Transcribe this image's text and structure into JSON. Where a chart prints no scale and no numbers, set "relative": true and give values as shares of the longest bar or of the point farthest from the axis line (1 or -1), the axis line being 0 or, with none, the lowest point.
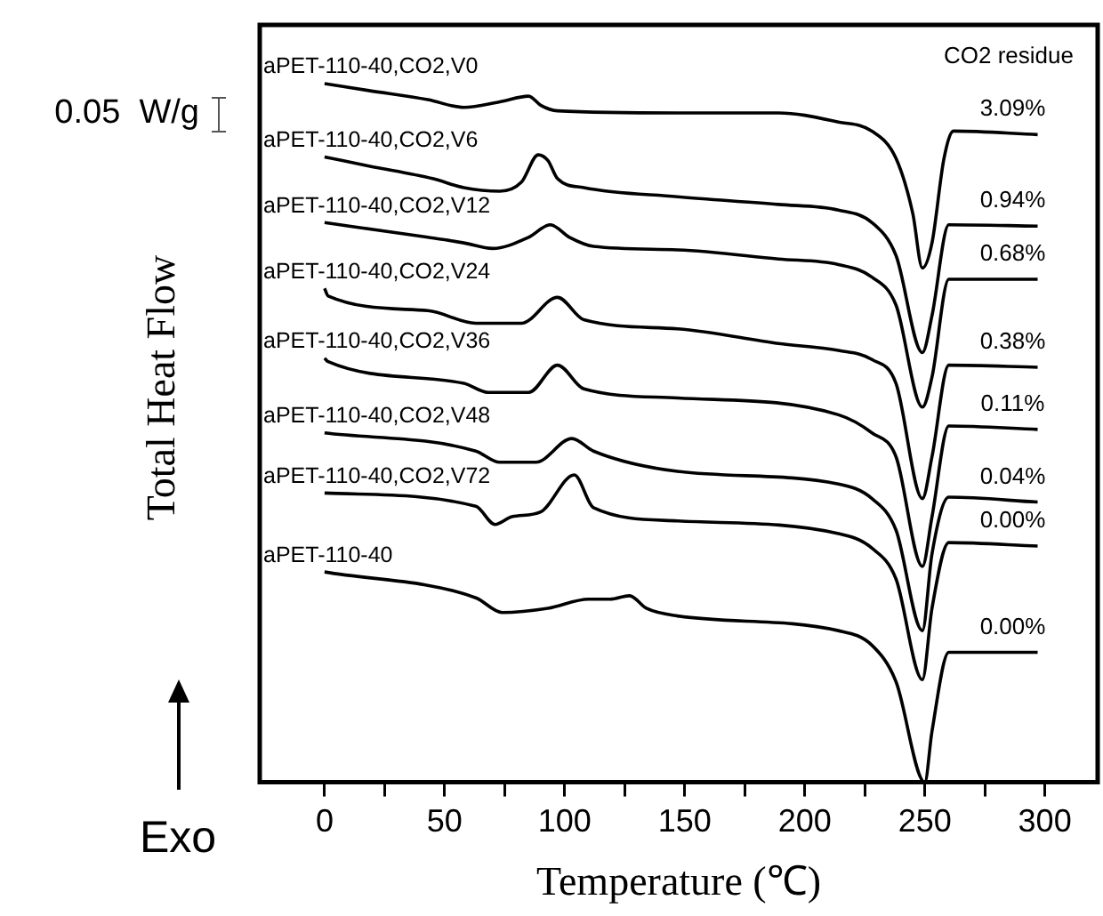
{
  "chart_data": {
    "type": "line",
    "relative": true,
    "xlabel": "Temperature (℃)",
    "ylabel": "Total Heat Flow",
    "xlim": [
      -27,
      322
    ],
    "xticks": [
      0,
      {
        "value": 25,
        "label": null
      },
      50,
      {
        "value": 75,
        "label": null
      },
      100,
      {
        "value": 125,
        "label": null
      },
      150,
      {
        "value": 175,
        "label": null
      },
      200,
      {
        "value": 225,
        "label": null
      },
      250,
      {
        "value": 275,
        "label": null
      },
      300
    ],
    "grid": false,
    "legend": false,
    "marker": "none",
    "line_style": "solid",
    "series": [
      {
        "name": "aPET-110-40,CO2,V0",
        "color": "#000000",
        "x": [
          0,
          18.5,
          43,
          58,
          73,
          85,
          90,
          97,
          147,
          189,
          214,
          228,
          238,
          245,
          249,
          253,
          258,
          262,
          297
        ],
        "values": [
          1.0,
          0.99,
          0.977,
          0.966,
          0.974,
          0.982,
          0.969,
          0.961,
          0.958,
          0.958,
          0.945,
          0.932,
          0.893,
          0.814,
          0.736,
          0.772,
          0.893,
          0.932,
          0.927
        ]
      },
      {
        "name": "aPET-110-40,CO2,V6",
        "color": "#000000",
        "x": [
          0,
          18.5,
          45,
          58,
          73,
          82,
          89,
          93,
          97,
          108,
          147,
          189,
          214,
          228,
          238,
          249,
          253,
          260,
          297
        ],
        "values": [
          0.895,
          0.882,
          0.864,
          0.851,
          0.846,
          0.859,
          0.898,
          0.89,
          0.864,
          0.851,
          0.838,
          0.827,
          0.819,
          0.801,
          0.754,
          0.615,
          0.668,
          0.798,
          0.796
        ]
      },
      {
        "name": "aPET-110-40,CO2,V12",
        "color": "#000000",
        "x": [
          0,
          43,
          58,
          70,
          85,
          94,
          102,
          112,
          147,
          189,
          214,
          228,
          238,
          249,
          253,
          260,
          297
        ],
        "values": [
          0.801,
          0.78,
          0.772,
          0.764,
          0.78,
          0.798,
          0.78,
          0.767,
          0.762,
          0.749,
          0.741,
          0.723,
          0.683,
          0.537,
          0.58,
          0.72,
          0.72
        ]
      },
      {
        "name": "aPET-110-40,CO2,V24",
        "color": "#000000",
        "x": [
          0,
          1.5,
          43,
          63,
          82,
          97,
          108,
          147,
          189,
          214,
          228,
          238,
          249,
          253,
          260,
          297
        ],
        "values": [
          0.707,
          0.696,
          0.675,
          0.657,
          0.657,
          0.694,
          0.662,
          0.649,
          0.628,
          0.618,
          0.605,
          0.571,
          0.406,
          0.466,
          0.597,
          0.594
        ]
      },
      {
        "name": "aPET-110-40,CO2,V36",
        "color": "#000000",
        "x": [
          0,
          1.5,
          58,
          68,
          85,
          97,
          108,
          147,
          214,
          228,
          238,
          249,
          253,
          260,
          297
        ],
        "values": [
          0.607,
          0.602,
          0.571,
          0.558,
          0.558,
          0.597,
          0.563,
          0.55,
          0.526,
          0.5,
          0.466,
          0.309,
          0.38,
          0.51,
          0.505
        ]
      },
      {
        "name": "aPET-110-40,CO2,V48",
        "color": "#000000",
        "x": [
          0,
          63,
          73,
          88,
          103,
          112,
          147,
          214,
          228,
          238,
          249,
          253,
          260,
          297
        ],
        "values": [
          0.5,
          0.474,
          0.458,
          0.458,
          0.492,
          0.474,
          0.445,
          0.427,
          0.406,
          0.361,
          0.217,
          0.327,
          0.408,
          0.401
        ]
      },
      {
        "name": "aPET-110-40,CO2,V72",
        "color": "#000000",
        "x": [
          0,
          63,
          71,
          78,
          90,
          104,
          112,
          147,
          214,
          228,
          238,
          249,
          253,
          260,
          297
        ],
        "values": [
          0.414,
          0.395,
          0.369,
          0.38,
          0.387,
          0.44,
          0.393,
          0.374,
          0.356,
          0.335,
          0.291,
          0.147,
          0.249,
          0.343,
          0.338
        ]
      },
      {
        "name": "aPET-110-40",
        "color": "#000000",
        "x": [
          0,
          63,
          74,
          93,
          110,
          119,
          127,
          134,
          147,
          214,
          228,
          238,
          250,
          253,
          260,
          297
        ],
        "values": [
          0.301,
          0.264,
          0.243,
          0.249,
          0.262,
          0.262,
          0.267,
          0.249,
          0.238,
          0.217,
          0.196,
          0.144,
          0,
          0.073,
          0.186,
          0.186
        ]
      }
    ],
    "annotations": [
      "CO2 residue",
      "0.05  W/g",
      "Exo",
      "3.09%",
      "0.94%",
      "0.68%",
      "0.38%",
      "0.11%",
      "0.04%",
      "0.00%",
      "0.00%"
    ]
  }
}
